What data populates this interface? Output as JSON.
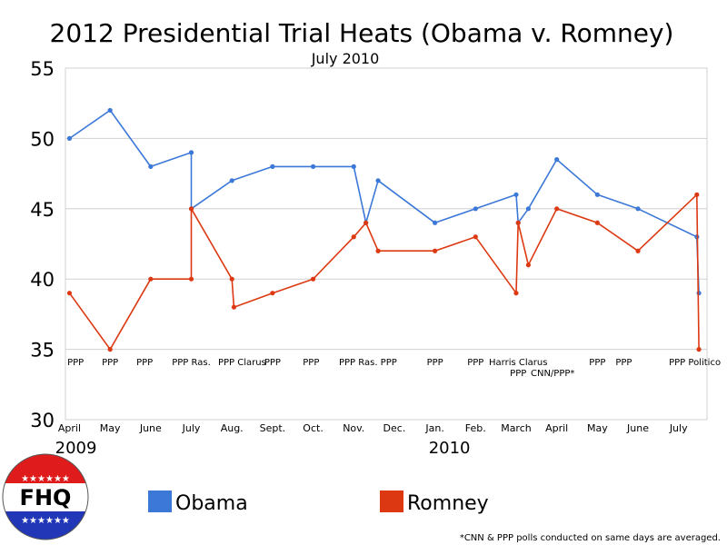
{
  "chart_data": {
    "type": "line",
    "title": "2012 Presidential Trial Heats (Obama v. Romney)",
    "subtitle": "July 2010",
    "ylim": [
      30,
      55
    ],
    "yticks": [
      30,
      35,
      40,
      45,
      50,
      55
    ],
    "grid": "horizontal",
    "x_months": [
      {
        "label": "April",
        "m": 0.0
      },
      {
        "label": "May",
        "m": 1.0
      },
      {
        "label": "June",
        "m": 2.0
      },
      {
        "label": "July",
        "m": 3.0
      },
      {
        "label": "Aug.",
        "m": 4.0
      },
      {
        "label": "Sept.",
        "m": 5.0
      },
      {
        "label": "Oct.",
        "m": 6.0
      },
      {
        "label": "Nov.",
        "m": 7.0
      },
      {
        "label": "Dec.",
        "m": 8.0
      },
      {
        "label": "Jan.",
        "m": 9.0
      },
      {
        "label": "Feb.",
        "m": 10.0
      },
      {
        "label": "March",
        "m": 11.0
      },
      {
        "label": "April",
        "m": 12.0
      },
      {
        "label": "May",
        "m": 13.0
      },
      {
        "label": "June",
        "m": 14.0
      },
      {
        "label": "July",
        "m": 15.0
      }
    ],
    "x_years": [
      {
        "label": "2009",
        "m": -0.2
      },
      {
        "label": "2010",
        "m": 9.0
      }
    ],
    "x_range": [
      -0.1,
      15.7
    ],
    "series": [
      {
        "name": "Obama",
        "color": "#3c78d8",
        "points": [
          {
            "m": 0.0,
            "v": 50
          },
          {
            "m": 1.0,
            "v": 52
          },
          {
            "m": 2.0,
            "v": 48
          },
          {
            "m": 3.0,
            "v": 49
          },
          {
            "m": 3.0,
            "v": 45
          },
          {
            "m": 4.0,
            "v": 47
          },
          {
            "m": 5.0,
            "v": 48
          },
          {
            "m": 6.0,
            "v": 48
          },
          {
            "m": 7.0,
            "v": 48
          },
          {
            "m": 7.3,
            "v": 44
          },
          {
            "m": 7.6,
            "v": 47
          },
          {
            "m": 9.0,
            "v": 44
          },
          {
            "m": 10.0,
            "v": 45
          },
          {
            "m": 11.0,
            "v": 46
          },
          {
            "m": 11.05,
            "v": 44
          },
          {
            "m": 11.3,
            "v": 45
          },
          {
            "m": 12.0,
            "v": 48.5
          },
          {
            "m": 13.0,
            "v": 46
          },
          {
            "m": 14.0,
            "v": 45
          },
          {
            "m": 15.45,
            "v": 43
          },
          {
            "m": 15.5,
            "v": 39
          }
        ]
      },
      {
        "name": "Romney",
        "color": "#dc3912",
        "points": [
          {
            "m": 0.0,
            "v": 39
          },
          {
            "m": 1.0,
            "v": 35
          },
          {
            "m": 2.0,
            "v": 40
          },
          {
            "m": 3.0,
            "v": 40
          },
          {
            "m": 3.0,
            "v": 45
          },
          {
            "m": 4.0,
            "v": 40
          },
          {
            "m": 4.05,
            "v": 38
          },
          {
            "m": 5.0,
            "v": 39
          },
          {
            "m": 6.0,
            "v": 40
          },
          {
            "m": 7.0,
            "v": 43
          },
          {
            "m": 7.3,
            "v": 44
          },
          {
            "m": 7.6,
            "v": 42
          },
          {
            "m": 9.0,
            "v": 42
          },
          {
            "m": 10.0,
            "v": 43
          },
          {
            "m": 11.0,
            "v": 39
          },
          {
            "m": 11.05,
            "v": 44
          },
          {
            "m": 11.3,
            "v": 41
          },
          {
            "m": 12.0,
            "v": 45
          },
          {
            "m": 13.0,
            "v": 44
          },
          {
            "m": 14.0,
            "v": 42
          },
          {
            "m": 15.45,
            "v": 46
          },
          {
            "m": 15.5,
            "v": 35
          }
        ]
      }
    ],
    "poll_labels": [
      {
        "text": "PPP",
        "m": 0.15,
        "line": 1
      },
      {
        "text": "PPP",
        "m": 1.0,
        "line": 1
      },
      {
        "text": "PPP",
        "m": 1.85,
        "line": 1
      },
      {
        "text": "PPP Ras.",
        "m": 3.0,
        "line": 1
      },
      {
        "text": "PPP Clarus",
        "m": 4.25,
        "line": 1
      },
      {
        "text": "PPP",
        "m": 5.0,
        "line": 1
      },
      {
        "text": "PPP",
        "m": 5.95,
        "line": 1
      },
      {
        "text": "PPP Ras. PPP",
        "m": 7.35,
        "line": 1
      },
      {
        "text": "PPP",
        "m": 9.0,
        "line": 1
      },
      {
        "text": "PPP",
        "m": 10.0,
        "line": 1
      },
      {
        "text": "Harris Clarus",
        "m": 11.05,
        "line": 1
      },
      {
        "text": "PPP",
        "m": 11.05,
        "line": 2
      },
      {
        "text": "CNN/PPP*",
        "m": 11.9,
        "line": 2
      },
      {
        "text": "PPP",
        "m": 13.0,
        "line": 1
      },
      {
        "text": "PPP",
        "m": 13.65,
        "line": 1
      },
      {
        "text": "PPP Politico",
        "m": 15.4,
        "line": 1
      }
    ],
    "legend": [
      {
        "name": "Obama",
        "color": "#3c78d8"
      },
      {
        "name": "Romney",
        "color": "#dc3912"
      }
    ],
    "footnote": "*CNN & PPP polls conducted on same days are averaged."
  },
  "logo": {
    "text": "FHQ"
  }
}
